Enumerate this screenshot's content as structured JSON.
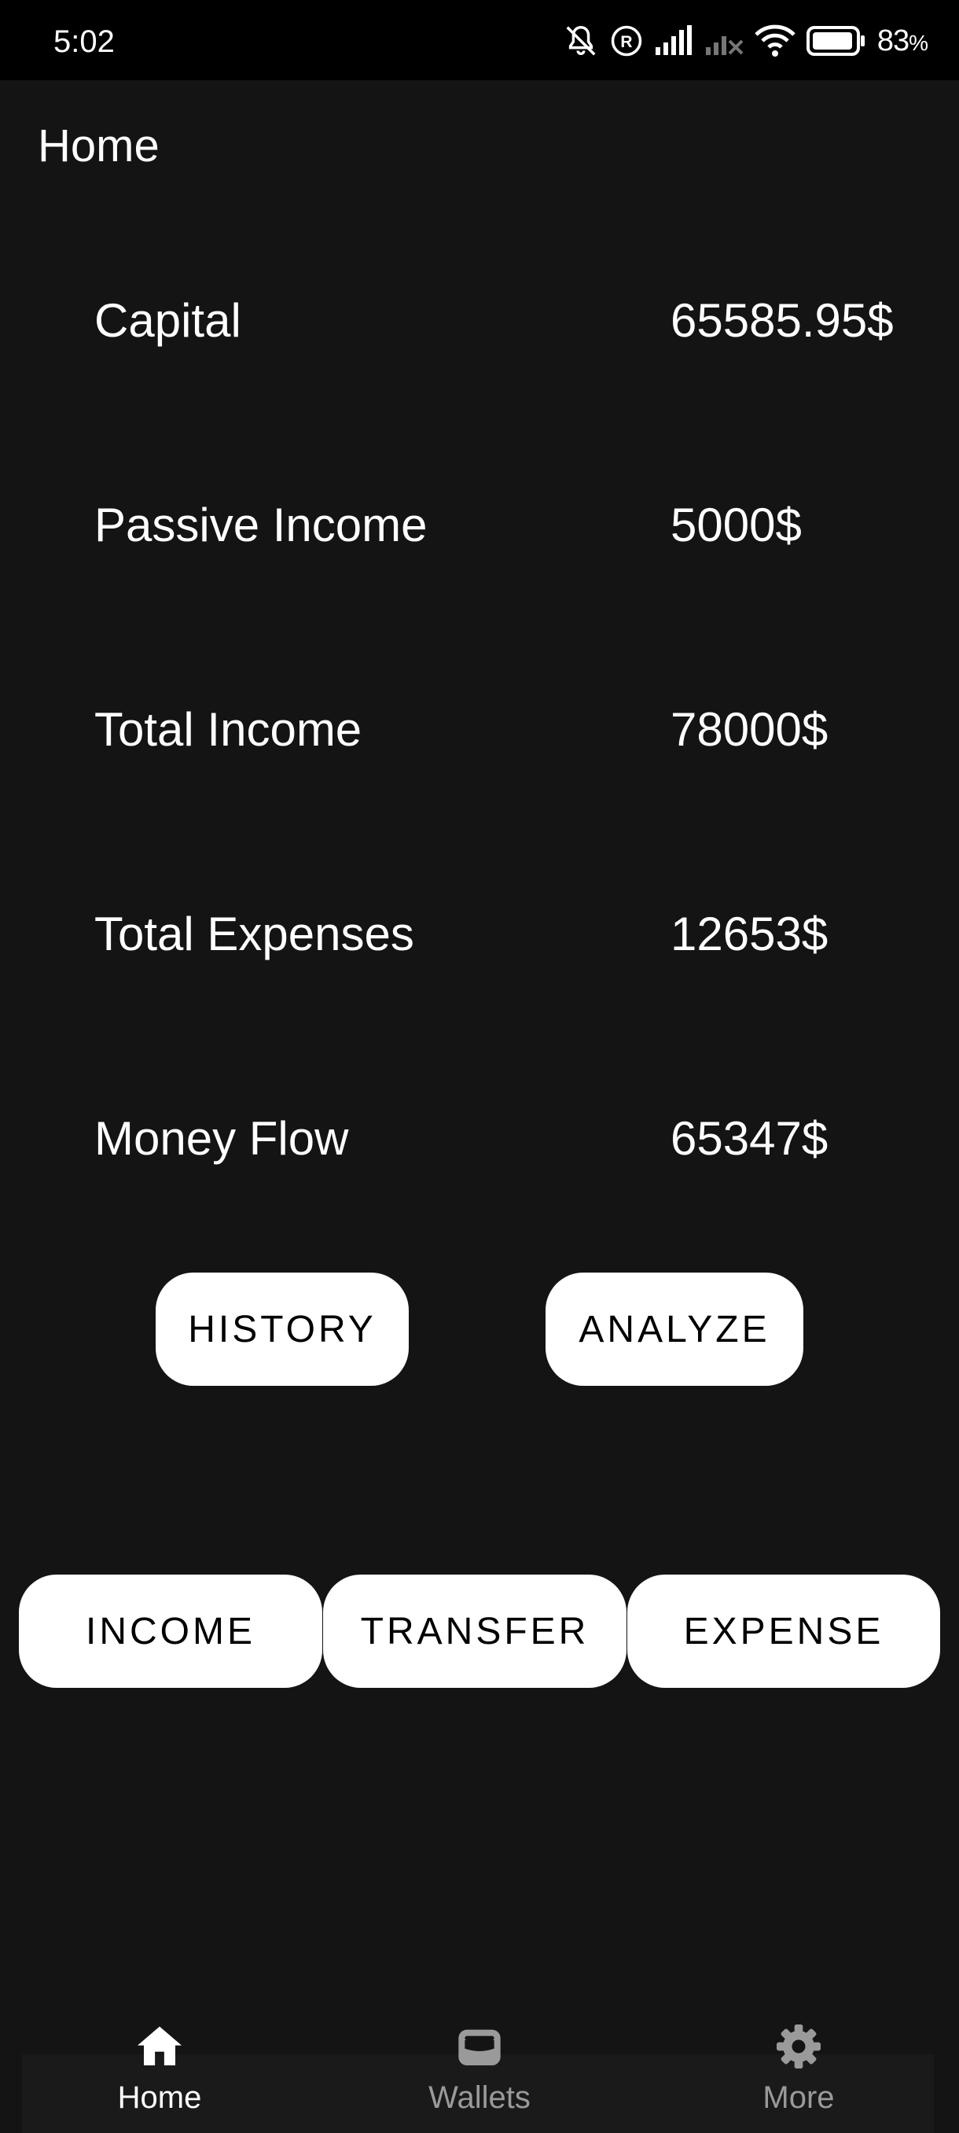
{
  "status_bar": {
    "time": "5:02",
    "battery_percent": "83",
    "battery_unit": "%",
    "icons": [
      "mute-bell-icon",
      "registered-icon",
      "signal-icon",
      "signal-no-sim-icon",
      "wifi-icon",
      "battery-icon"
    ]
  },
  "header": {
    "title": "Home"
  },
  "stats": [
    {
      "label": "Capital",
      "value": "65585.95$"
    },
    {
      "label": "Passive Income",
      "value": "5000$"
    },
    {
      "label": "Total Income",
      "value": "78000$"
    },
    {
      "label": "Total Expenses",
      "value": "12653$"
    },
    {
      "label": "Money Flow",
      "value": "65347$"
    }
  ],
  "actions": {
    "history": "HISTORY",
    "analyze": "ANALYZE",
    "income": "INCOME",
    "transfer": "TRANSFER",
    "expense": "EXPENSE"
  },
  "nav": {
    "active": "Home",
    "items": [
      {
        "label": "Home",
        "icon": "home-icon"
      },
      {
        "label": "Wallets",
        "icon": "wallet-icon"
      },
      {
        "label": "More",
        "icon": "gear-icon"
      }
    ]
  },
  "colors": {
    "background": "#141414",
    "status_bar": "#000000",
    "button": "#ffffff",
    "button_text": "#000000",
    "nav_active": "#ffffff",
    "nav_inactive": "#9a9a9a"
  }
}
